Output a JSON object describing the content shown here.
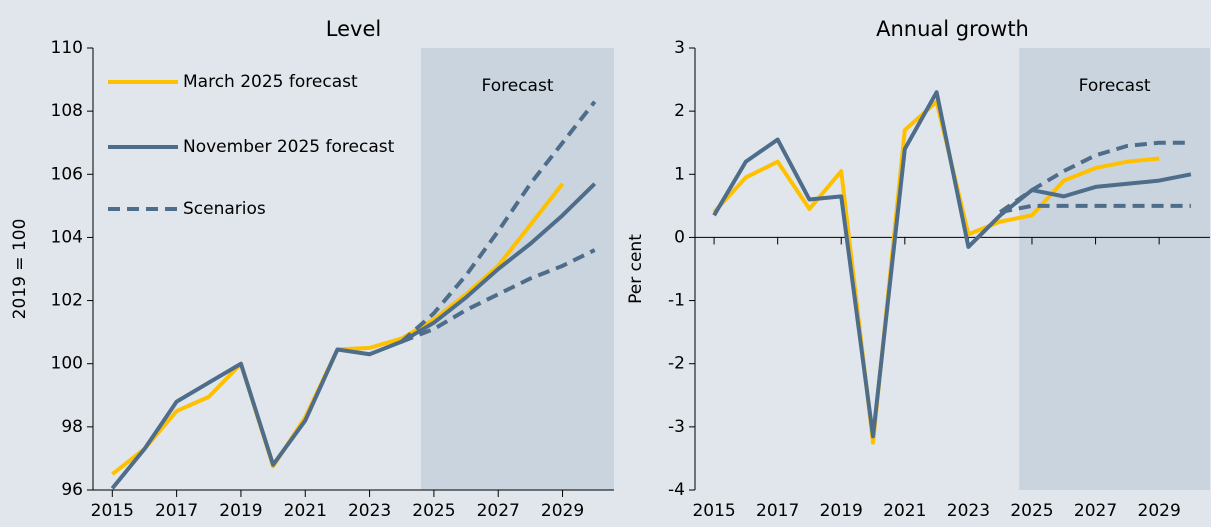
{
  "chart_data": [
    {
      "type": "line",
      "title": "Level",
      "ylabel": "2019 = 100",
      "annotation": "Forecast",
      "forecast_start": 2024.6,
      "x": [
        2015,
        2016,
        2017,
        2018,
        2019,
        2020,
        2021,
        2022,
        2023,
        2024,
        2025,
        2026,
        2027,
        2028,
        2029,
        2030
      ],
      "xlim": [
        2014.4,
        2030.6
      ],
      "xticks": [
        2015,
        2017,
        2019,
        2021,
        2023,
        2025,
        2027,
        2029
      ],
      "ylim": [
        96,
        110
      ],
      "yticks": [
        96,
        98,
        100,
        102,
        104,
        106,
        108,
        110
      ],
      "legend": "upper left",
      "series": [
        {
          "name": "March 2025 forecast",
          "color": "#ffc000",
          "dash": false,
          "values": [
            96.5,
            97.3,
            98.5,
            98.95,
            100,
            96.75,
            98.3,
            100.45,
            100.5,
            100.8,
            101.4,
            102.2,
            103.1,
            104.4,
            105.7,
            null
          ]
        },
        {
          "name": "November 2025 forecast",
          "color": "#4d6d8a",
          "dash": false,
          "values": [
            96.05,
            97.3,
            98.8,
            99.4,
            100,
            96.8,
            98.2,
            100.45,
            100.3,
            100.7,
            101.3,
            102.1,
            103.0,
            103.8,
            104.7,
            105.7
          ]
        },
        {
          "name": "Scenarios",
          "color": "#4d6d8a",
          "dash": true,
          "values": [
            null,
            null,
            null,
            null,
            null,
            null,
            null,
            null,
            null,
            100.7,
            101.6,
            102.8,
            104.2,
            105.7,
            107.0,
            108.3
          ]
        },
        {
          "color": "#4d6d8a",
          "dash": true,
          "values": [
            null,
            null,
            null,
            null,
            null,
            null,
            null,
            null,
            null,
            100.7,
            101.1,
            101.7,
            102.2,
            102.7,
            103.1,
            103.6
          ]
        }
      ]
    },
    {
      "type": "line",
      "title": "Annual growth",
      "ylabel": "Per cent",
      "annotation": "Forecast",
      "forecast_start": 2024.6,
      "x": [
        2015,
        2016,
        2017,
        2018,
        2019,
        2020,
        2021,
        2022,
        2023,
        2024,
        2025,
        2026,
        2027,
        2028,
        2029,
        2030
      ],
      "xlim": [
        2014.4,
        2030.6
      ],
      "xticks": [
        2015,
        2017,
        2019,
        2021,
        2023,
        2025,
        2027,
        2029
      ],
      "ylim": [
        -4,
        3
      ],
      "yticks": [
        -4,
        -3,
        -2,
        -1,
        0,
        1,
        2,
        3
      ],
      "xaxis_at": 0,
      "series": [
        {
          "name": "March 2025 forecast",
          "color": "#ffc000",
          "dash": false,
          "values": [
            0.4,
            0.95,
            1.2,
            0.45,
            1.05,
            -3.25,
            1.7,
            2.15,
            0.05,
            0.25,
            0.35,
            0.9,
            1.1,
            1.2,
            1.25,
            null
          ]
        },
        {
          "name": "November 2025 forecast",
          "color": "#4d6d8a",
          "dash": false,
          "values": [
            0.35,
            1.2,
            1.55,
            0.6,
            0.65,
            -3.15,
            1.4,
            2.3,
            -0.15,
            0.35,
            0.75,
            0.65,
            0.8,
            0.85,
            0.9,
            1.0
          ]
        },
        {
          "name": "Scenarios",
          "color": "#4d6d8a",
          "dash": true,
          "values": [
            null,
            null,
            null,
            null,
            null,
            null,
            null,
            null,
            null,
            0.4,
            0.75,
            1.05,
            1.3,
            1.45,
            1.5,
            1.5
          ]
        },
        {
          "color": "#4d6d8a",
          "dash": true,
          "values": [
            null,
            null,
            null,
            null,
            null,
            null,
            null,
            null,
            null,
            0.4,
            0.5,
            0.5,
            0.5,
            0.5,
            0.5,
            0.5
          ]
        }
      ]
    }
  ]
}
